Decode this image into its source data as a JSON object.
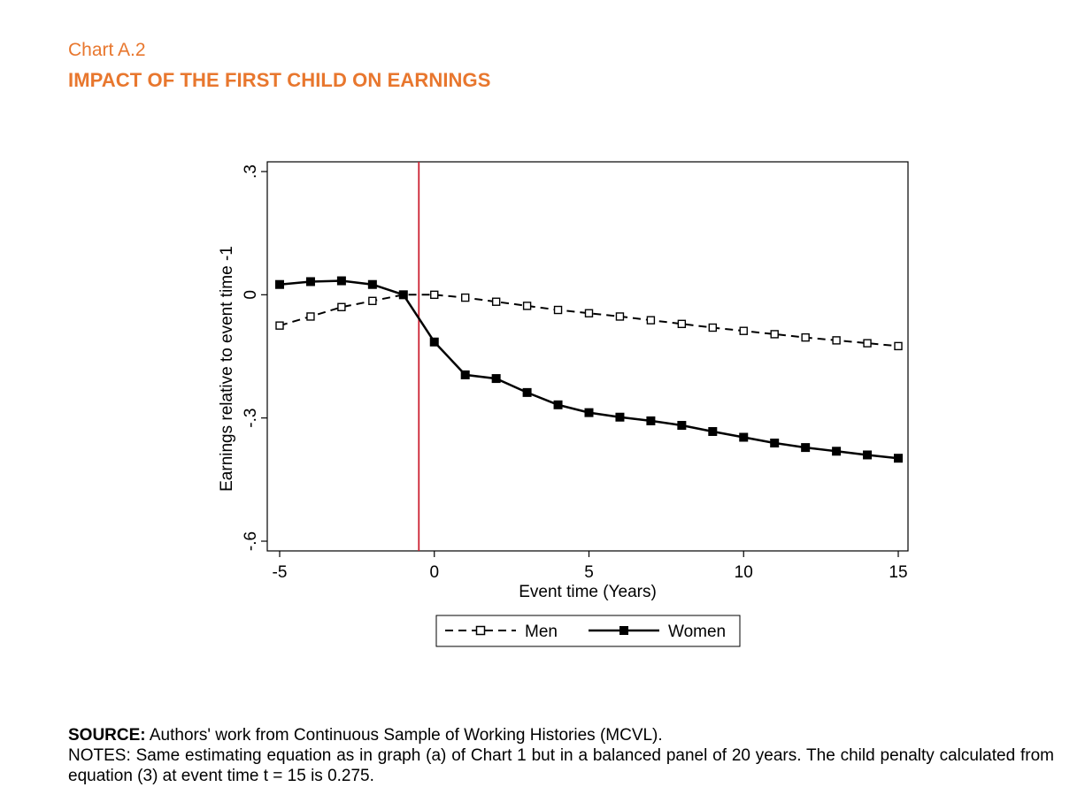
{
  "header": {
    "kicker": "Chart A.2",
    "title": "IMPACT OF THE FIRST CHILD ON EARNINGS"
  },
  "chart_data": {
    "type": "line",
    "title": "",
    "xlabel": "Event time (Years)",
    "ylabel": "Earnings relative to event time -1",
    "xlim": [
      -5,
      15
    ],
    "ylim": [
      -0.6,
      0.3
    ],
    "xticks": [
      -5,
      0,
      5,
      10,
      15
    ],
    "xtick_labels": [
      "-5",
      "0",
      "5",
      "10",
      "15"
    ],
    "yticks": [
      0.3,
      0,
      -0.3,
      -0.6
    ],
    "ytick_labels": [
      ".3",
      "0",
      "-.3",
      "-.6"
    ],
    "grid": false,
    "legend_position": "bottom-center",
    "event_line": {
      "x": -0.5,
      "color": "#cc2233"
    },
    "x": [
      -5,
      -4,
      -3,
      -2,
      -1,
      0,
      1,
      2,
      3,
      4,
      5,
      6,
      7,
      8,
      9,
      10,
      11,
      12,
      13,
      14,
      15
    ],
    "series": [
      {
        "name": "Men",
        "style": "dashed",
        "marker": "hollow-square",
        "color": "#000000",
        "values": [
          -0.075,
          -0.053,
          -0.03,
          -0.015,
          0.0,
          0.0,
          -0.007,
          -0.017,
          -0.027,
          -0.037,
          -0.045,
          -0.053,
          -0.062,
          -0.071,
          -0.08,
          -0.088,
          -0.096,
          -0.104,
          -0.111,
          -0.118,
          -0.125
        ]
      },
      {
        "name": "Women",
        "style": "solid",
        "marker": "filled-square",
        "color": "#000000",
        "values": [
          0.025,
          0.032,
          0.034,
          0.025,
          0.0,
          -0.115,
          -0.195,
          -0.204,
          -0.238,
          -0.268,
          -0.287,
          -0.298,
          -0.307,
          -0.318,
          -0.333,
          -0.347,
          -0.361,
          -0.372,
          -0.381,
          -0.39,
          -0.398
        ]
      }
    ]
  },
  "footer": {
    "source_label": "SOURCE:",
    "source_text": " Authors' work from Continuous Sample of Working Histories (MCVL).",
    "notes": "NOTES: Same estimating equation as in graph (a) of Chart 1 but in a balanced panel of 20 years. The child penalty calculated from equation (3) at event time t = 15 is 0.275."
  }
}
